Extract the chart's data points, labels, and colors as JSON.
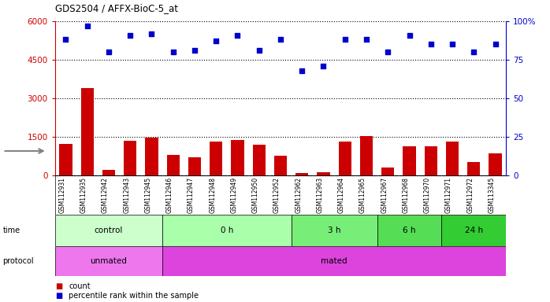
{
  "title": "GDS2504 / AFFX-BioC-5_at",
  "samples": [
    "GSM112931",
    "GSM112935",
    "GSM112942",
    "GSM112943",
    "GSM112945",
    "GSM112946",
    "GSM112947",
    "GSM112948",
    "GSM112949",
    "GSM112950",
    "GSM112952",
    "GSM112962",
    "GSM112963",
    "GSM112964",
    "GSM112965",
    "GSM112967",
    "GSM112968",
    "GSM112970",
    "GSM112971",
    "GSM112972",
    "GSM113345"
  ],
  "counts": [
    1230,
    3380,
    210,
    1340,
    1460,
    780,
    700,
    1300,
    1380,
    1190,
    760,
    80,
    110,
    1320,
    1530,
    300,
    1140,
    1140,
    1310,
    510,
    850
  ],
  "percentiles": [
    88,
    97,
    80,
    91,
    92,
    80,
    81,
    87,
    91,
    81,
    88,
    68,
    71,
    88,
    88,
    80,
    91,
    85,
    85,
    80,
    85
  ],
  "bar_color": "#cc0000",
  "dot_color": "#0000cc",
  "ylim_left": [
    0,
    6000
  ],
  "ylim_right": [
    0,
    100
  ],
  "yticks_left": [
    0,
    1500,
    3000,
    4500,
    6000
  ],
  "yticks_right": [
    0,
    25,
    50,
    75,
    100
  ],
  "grid_values": [
    1500,
    3000,
    4500,
    6000
  ],
  "time_groups": [
    {
      "label": "control",
      "start": 0,
      "end": 5,
      "color": "#ccffcc"
    },
    {
      "label": "0 h",
      "start": 5,
      "end": 11,
      "color": "#aaffaa"
    },
    {
      "label": "3 h",
      "start": 11,
      "end": 15,
      "color": "#77ee77"
    },
    {
      "label": "6 h",
      "start": 15,
      "end": 18,
      "color": "#55dd55"
    },
    {
      "label": "24 h",
      "start": 18,
      "end": 21,
      "color": "#33cc33"
    }
  ],
  "protocol_groups": [
    {
      "label": "unmated",
      "start": 0,
      "end": 5,
      "color": "#ee77ee"
    },
    {
      "label": "mated",
      "start": 5,
      "end": 21,
      "color": "#dd44dd"
    }
  ],
  "legend_count_color": "#cc0000",
  "legend_dot_color": "#0000cc",
  "xtick_bg": "#dddddd"
}
